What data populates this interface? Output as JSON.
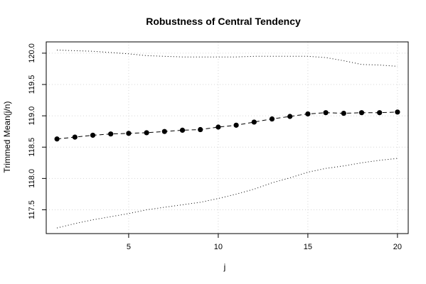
{
  "chart_data": {
    "type": "line",
    "title": "Robustness of Central Tendency",
    "xlabel": "j",
    "ylabel": "Trimmed Mean(j/n)",
    "xlim": [
      0.4,
      20.6
    ],
    "ylim": [
      117.12,
      120.18
    ],
    "x_ticks": [
      5,
      10,
      15,
      20
    ],
    "y_ticks": [
      117.5,
      118.0,
      118.5,
      119.0,
      119.5,
      120.0
    ],
    "x_tick_labels": [
      "5",
      "10",
      "15",
      "20"
    ],
    "y_tick_labels": [
      "117.5",
      "118.0",
      "118.5",
      "119.0",
      "119.5",
      "120.0"
    ],
    "grid": true,
    "legend": "none",
    "x": [
      1,
      2,
      3,
      4,
      5,
      6,
      7,
      8,
      9,
      10,
      11,
      12,
      13,
      14,
      15,
      16,
      17,
      18,
      19,
      20
    ],
    "series": [
      {
        "role": "estimate",
        "style": "dashed-with-points",
        "color": "#000000",
        "values": [
          118.63,
          118.66,
          118.69,
          118.71,
          118.72,
          118.73,
          118.75,
          118.77,
          118.78,
          118.82,
          118.85,
          118.9,
          118.95,
          118.99,
          119.03,
          119.05,
          119.04,
          119.05,
          119.05,
          119.06
        ]
      },
      {
        "role": "upper-bound",
        "style": "dotted",
        "color": "#000000",
        "values": [
          120.05,
          120.04,
          120.03,
          120.01,
          119.99,
          119.96,
          119.95,
          119.94,
          119.94,
          119.94,
          119.94,
          119.95,
          119.95,
          119.95,
          119.95,
          119.93,
          119.88,
          119.82,
          119.81,
          119.79
        ]
      },
      {
        "role": "lower-bound",
        "style": "dotted",
        "color": "#000000",
        "values": [
          117.21,
          117.28,
          117.34,
          117.39,
          117.44,
          117.5,
          117.54,
          117.58,
          117.62,
          117.68,
          117.75,
          117.83,
          117.93,
          118.01,
          118.1,
          118.16,
          118.2,
          118.25,
          118.29,
          118.32
        ]
      }
    ]
  }
}
